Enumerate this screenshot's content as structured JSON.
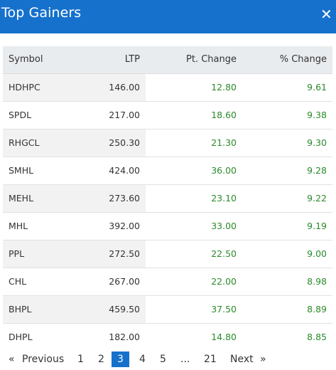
{
  "header": {
    "title": "Top Gainers",
    "close_icon": "close-icon"
  },
  "table": {
    "columns": [
      "Symbol",
      "LTP",
      "Pt. Change",
      "% Change"
    ],
    "rows": [
      [
        "HDHPC",
        "146.00",
        "12.80",
        "9.61"
      ],
      [
        "SPDL",
        "217.00",
        "18.60",
        "9.38"
      ],
      [
        "RHGCL",
        "250.30",
        "21.30",
        "9.30"
      ],
      [
        "SMHL",
        "424.00",
        "36.00",
        "9.28"
      ],
      [
        "MEHL",
        "273.60",
        "23.10",
        "9.22"
      ],
      [
        "MHL",
        "392.00",
        "33.00",
        "9.19"
      ],
      [
        "PPL",
        "272.50",
        "22.50",
        "9.00"
      ],
      [
        "CHL",
        "267.00",
        "22.00",
        "8.98"
      ],
      [
        "BHPL",
        "459.50",
        "37.50",
        "8.89"
      ],
      [
        "DHPL",
        "182.00",
        "14.80",
        "8.85"
      ]
    ]
  },
  "pagination": {
    "prev_arrow": "«",
    "previous_label": "Previous",
    "pages": [
      "1",
      "2",
      "3",
      "4",
      "5"
    ],
    "ellipsis": "...",
    "last_page": "21",
    "next_label": "Next",
    "next_arrow": "»",
    "current_page": "3"
  },
  "colors": {
    "header": "#1671cc",
    "positive": "#2a8a2a",
    "active_page": "#1671cc"
  }
}
